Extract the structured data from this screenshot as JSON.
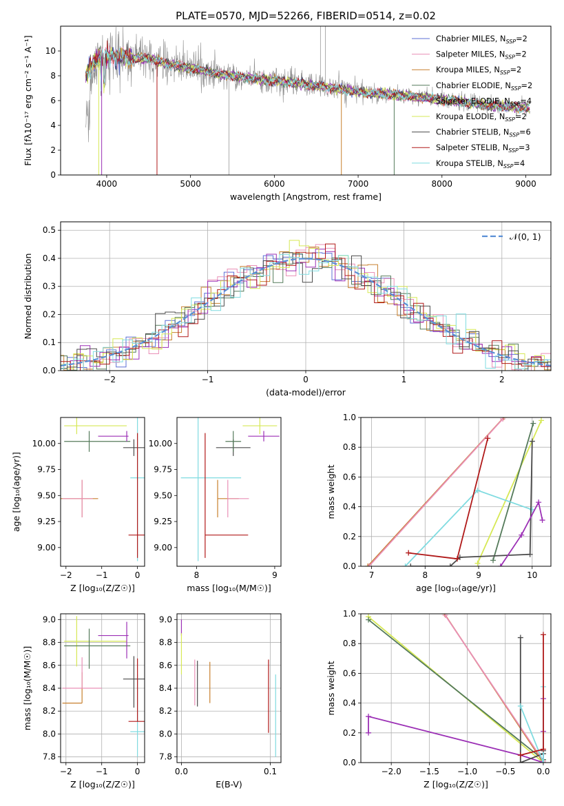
{
  "figure": {
    "title": "PLATE=0570, MJD=52266, FIBERID=0514, z=0.02"
  },
  "models": [
    {
      "label": "Chabrier MILES, N",
      "sub": "SSP",
      "n": "=2",
      "color": "#5b6fd6"
    },
    {
      "label": "Salpeter MILES, N",
      "sub": "SSP",
      "n": "=2",
      "color": "#e98fb6"
    },
    {
      "label": "Kroupa MILES, N",
      "sub": "SSP",
      "n": "=2",
      "color": "#c77f2c"
    },
    {
      "label": "Chabrier ELODIE, N",
      "sub": "SSP",
      "n": "=2",
      "color": "#547a5a"
    },
    {
      "label": "Salpeter ELODIE, N",
      "sub": "SSP",
      "n": "=4",
      "color": "#9b2fb5"
    },
    {
      "label": "Kroupa ELODIE, N",
      "sub": "SSP",
      "n": "=2",
      "color": "#d6e854"
    },
    {
      "label": "Chabrier STELIB, N",
      "sub": "SSP",
      "n": "=6",
      "color": "#4a4a4a"
    },
    {
      "label": "Salpeter STELIB, N",
      "sub": "SSP",
      "n": "=3",
      "color": "#b01818"
    },
    {
      "label": "Kroupa STELIB, N",
      "sub": "SSP",
      "n": "=4",
      "color": "#7fdbe0"
    }
  ],
  "chart_data": [
    {
      "id": "spectrum",
      "type": "line",
      "xlabel": "wavelength [Angstrom, rest frame]",
      "ylabel": "Flux [fλ10⁻¹⁷ erg cm⁻² s⁻¹ A⁻¹]",
      "xlim": [
        3450,
        9300
      ],
      "ylim": [
        0,
        12
      ],
      "xticks": [
        4000,
        5000,
        6000,
        7000,
        8000,
        9000
      ],
      "yticks": [
        0,
        2,
        4,
        6,
        8,
        10
      ],
      "legend": "top-right",
      "continuum": [
        [
          3750,
          8.0
        ],
        [
          3850,
          9.2
        ],
        [
          3950,
          9.6
        ],
        [
          4100,
          9.6
        ],
        [
          4300,
          9.4
        ],
        [
          4500,
          9.4
        ],
        [
          4700,
          9.0
        ],
        [
          5000,
          8.6
        ],
        [
          5300,
          8.2
        ],
        [
          5600,
          7.9
        ],
        [
          6000,
          7.6
        ],
        [
          6400,
          7.3
        ],
        [
          6700,
          7.0
        ],
        [
          7000,
          6.7
        ],
        [
          7400,
          6.5
        ],
        [
          7800,
          6.2
        ],
        [
          8200,
          5.9
        ],
        [
          8600,
          5.6
        ],
        [
          9050,
          5.4
        ]
      ],
      "data_series": {
        "name": "data",
        "color": "#8a8a8a"
      }
    },
    {
      "id": "residuals",
      "type": "histogram",
      "xlabel": "(data-model)/error",
      "ylabel": "Normed distribution",
      "xlim": [
        -2.5,
        2.5
      ],
      "ylim": [
        0,
        0.53
      ],
      "xticks": [
        -2,
        -1,
        0,
        1,
        2
      ],
      "yticks": [
        0.0,
        0.1,
        0.2,
        0.3,
        0.4,
        0.5
      ],
      "ytick_labels": [
        "0.0",
        "0.1",
        "0.2",
        "0.3",
        "0.4",
        "0.5"
      ],
      "bin_width": 0.1,
      "legend_label": "𝒩(0, 1)",
      "legend_color": "#5a8fd6"
    },
    {
      "id": "age_vs_Z",
      "type": "scatter",
      "xlabel": "Z [log₁₀(Z/Z☉)]",
      "ylabel": "age  [log₁₀(age/yr)]",
      "xlim": [
        -2.15,
        0.2
      ],
      "ylim": [
        8.82,
        10.25
      ],
      "xticks": [
        -2,
        -1,
        0
      ],
      "yticks": [
        9.0,
        9.25,
        9.5,
        9.75,
        10.0
      ],
      "ytick_labels": [
        "9.00",
        "9.25",
        "9.50",
        "9.75",
        "10.00"
      ],
      "points": [
        {
          "m": 2,
          "x": -1.55,
          "y": 9.47,
          "xe": [
            0.9,
            0.45
          ],
          "ye": [
            0.18,
            0.18
          ]
        },
        {
          "m": 1,
          "x": -1.55,
          "y": 9.47,
          "xe": [
            0.55,
            0.3
          ],
          "ye": [
            0.18,
            0.18
          ]
        },
        {
          "m": 5,
          "x": -1.7,
          "y": 10.17,
          "xe": [
            0.35,
            1.4
          ],
          "ye": [
            0.08,
            0.08
          ]
        },
        {
          "m": 3,
          "x": -1.35,
          "y": 10.02,
          "xe": [
            0.7,
            1.15
          ],
          "ye": [
            0.1,
            0.1
          ]
        },
        {
          "m": 4,
          "x": -0.3,
          "y": 10.07,
          "xe": [
            0.8,
            0.05
          ],
          "ye": [
            0.05,
            0.05
          ]
        },
        {
          "m": 6,
          "x": -0.1,
          "y": 9.96,
          "xe": [
            0.3,
            0.3
          ],
          "ye": [
            0.08,
            0.08
          ]
        },
        {
          "m": 8,
          "x": 0.0,
          "y": 9.67,
          "xe": [
            0.2,
            0.2
          ],
          "ye": [
            0.8,
            0.8
          ]
        },
        {
          "m": 7,
          "x": 0.0,
          "y": 9.12,
          "xe": [
            0.25,
            0.25
          ],
          "ye": [
            0.22,
            0.98
          ]
        }
      ]
    },
    {
      "id": "age_vs_mass",
      "type": "scatter",
      "xlabel": "mass [log₁₀(M/M☉)]",
      "ylabel": "",
      "xlim": [
        7.75,
        9.08
      ],
      "ylim": [
        8.82,
        10.25
      ],
      "xticks": [
        8,
        9
      ],
      "yticks": [
        9.0,
        9.25,
        9.5,
        9.75,
        10.0
      ],
      "ytick_labels": [
        "9.00",
        "9.25",
        "9.50",
        "9.75",
        "10.00"
      ],
      "points": [
        {
          "m": 8,
          "x": 8.02,
          "y": 9.67,
          "xe": [
            0.22,
            0.55
          ],
          "ye": [
            0.8,
            0.8
          ]
        },
        {
          "m": 7,
          "x": 8.11,
          "y": 9.12,
          "xe": [
            0.0,
            0.55
          ],
          "ye": [
            0.22,
            0.98
          ]
        },
        {
          "m": 2,
          "x": 8.27,
          "y": 9.47,
          "xe": [
            0.0,
            0.27
          ],
          "ye": [
            0.18,
            0.18
          ]
        },
        {
          "m": 1,
          "x": 8.4,
          "y": 9.47,
          "xe": [
            0.0,
            0.27
          ],
          "ye": [
            0.18,
            0.18
          ]
        },
        {
          "m": 6,
          "x": 8.47,
          "y": 9.96,
          "xe": [
            0.22,
            0.22
          ],
          "ye": [
            0.08,
            0.08
          ]
        },
        {
          "m": 3,
          "x": 8.47,
          "y": 10.02,
          "xe": [
            0.1,
            0.1
          ],
          "ye": [
            0.1,
            0.1
          ]
        },
        {
          "m": 5,
          "x": 8.81,
          "y": 10.17,
          "xe": [
            0.22,
            0.22
          ],
          "ye": [
            0.08,
            0.08
          ]
        },
        {
          "m": 4,
          "x": 8.86,
          "y": 10.07,
          "xe": [
            0.2,
            0.2
          ],
          "ye": [
            0.05,
            0.05
          ]
        }
      ]
    },
    {
      "id": "weight_vs_age",
      "type": "line",
      "xlabel": "age  [log₁₀(age/yr)]",
      "ylabel": "mass weight",
      "xlim": [
        6.8,
        10.35
      ],
      "ylim": [
        0,
        1
      ],
      "xticks": [
        7,
        8,
        9,
        10
      ],
      "yticks": [
        0.0,
        0.2,
        0.4,
        0.6,
        0.8,
        1.0
      ],
      "ytick_labels": [
        "0.0",
        "0.2",
        "0.4",
        "0.6",
        "0.8",
        "1.0"
      ],
      "series": [
        {
          "m": 2,
          "x": [
            6.93,
            9.47
          ],
          "y": [
            0.0,
            1.0
          ]
        },
        {
          "m": 1,
          "x": [
            6.95,
            9.45
          ],
          "y": [
            0.0,
            0.99
          ]
        },
        {
          "m": 5,
          "x": [
            8.98,
            10.17
          ],
          "y": [
            0.02,
            0.98
          ]
        },
        {
          "m": 3,
          "x": [
            9.27,
            10.02
          ],
          "y": [
            0.04,
            0.96
          ]
        },
        {
          "m": 8,
          "x": [
            7.63,
            8.98,
            10.0
          ],
          "y": [
            0.0,
            0.51,
            0.38
          ]
        },
        {
          "m": 6,
          "x": [
            7.73,
            8.47,
            8.65,
            9.96,
            10.0
          ],
          "y": [
            0.0,
            0.0,
            0.06,
            0.08,
            0.84
          ]
        },
        {
          "m": 7,
          "x": [
            7.69,
            8.6,
            9.17
          ],
          "y": [
            0.09,
            0.05,
            0.86
          ]
        },
        {
          "m": 4,
          "x": [
            9.41,
            9.8,
            10.12,
            10.19
          ],
          "y": [
            0.0,
            0.21,
            0.43,
            0.31
          ]
        }
      ]
    },
    {
      "id": "mass_vs_Z",
      "type": "scatter",
      "xlabel": "Z [log₁₀(Z/Z☉)]",
      "ylabel": "mass [log₁₀(M/M☉)]",
      "xlim": [
        -2.15,
        0.2
      ],
      "ylim": [
        7.75,
        9.05
      ],
      "xticks": [
        -2,
        -1,
        0
      ],
      "yticks": [
        7.8,
        8.0,
        8.2,
        8.4,
        8.6,
        8.8,
        9.0
      ],
      "ytick_labels": [
        "7.8",
        "8.0",
        "8.2",
        "8.4",
        "8.6",
        "8.8",
        "9.0"
      ],
      "points": [
        {
          "m": 2,
          "x": -1.55,
          "y": 8.27,
          "xe": [
            0.55,
            0.0
          ],
          "ye": [
            0.0,
            0.27
          ]
        },
        {
          "m": 1,
          "x": -1.55,
          "y": 8.4,
          "xe": [
            0.55,
            0.55
          ],
          "ye": [
            0.0,
            0.27
          ]
        },
        {
          "m": 5,
          "x": -1.7,
          "y": 8.81,
          "xe": [
            0.35,
            1.4
          ],
          "ye": [
            0.22,
            0.22
          ]
        },
        {
          "m": 3,
          "x": -1.35,
          "y": 8.77,
          "xe": [
            0.7,
            1.15
          ],
          "ye": [
            0.2,
            0.15
          ]
        },
        {
          "m": 4,
          "x": -0.3,
          "y": 8.86,
          "xe": [
            0.8,
            0.05
          ],
          "ye": [
            0.2,
            0.12
          ]
        },
        {
          "m": 6,
          "x": -0.1,
          "y": 8.48,
          "xe": [
            0.3,
            0.3
          ],
          "ye": [
            0.25,
            0.2
          ]
        },
        {
          "m": 8,
          "x": 0.0,
          "y": 8.02,
          "xe": [
            0.2,
            0.2
          ],
          "ye": [
            0.22,
            0.5
          ]
        },
        {
          "m": 7,
          "x": 0.0,
          "y": 8.11,
          "xe": [
            0.25,
            0.25
          ],
          "ye": [
            0.0,
            0.55
          ]
        }
      ]
    },
    {
      "id": "mass_vs_ebv",
      "type": "scatter",
      "xlabel": "E(B-V)",
      "ylabel": "",
      "xlim": [
        -0.005,
        0.112
      ],
      "ylim": [
        7.75,
        9.05
      ],
      "xticks": [
        0.0,
        0.1
      ],
      "yticks": [
        7.8,
        8.0,
        8.2,
        8.4,
        8.6,
        8.8,
        9.0
      ],
      "xtick_labels": [
        "0.0",
        "0.1"
      ],
      "ytick_labels": [
        "7.8",
        "8.0",
        "8.2",
        "8.4",
        "8.6",
        "8.8",
        "9.0"
      ],
      "points": [
        {
          "m": 4,
          "x": 0.0,
          "y": 8.93,
          "xe": [
            0,
            0
          ],
          "ye": [
            0.07,
            0.07
          ]
        },
        {
          "m": 5,
          "x": 0.0,
          "y": 8.7,
          "xe": [
            0,
            0
          ],
          "ye": [
            0.18,
            0.18
          ]
        },
        {
          "m": 1,
          "x": 0.015,
          "y": 8.45,
          "xe": [
            0,
            0
          ],
          "ye": [
            0.2,
            0.2
          ]
        },
        {
          "m": 6,
          "x": 0.018,
          "y": 8.44,
          "xe": [
            0,
            0
          ],
          "ye": [
            0.2,
            0.2
          ]
        },
        {
          "m": 2,
          "x": 0.032,
          "y": 8.45,
          "xe": [
            0,
            0
          ],
          "ye": [
            0.18,
            0.18
          ]
        },
        {
          "m": 7,
          "x": 0.098,
          "y": 8.33,
          "xe": [
            0,
            0
          ],
          "ye": [
            0.32,
            0.32
          ]
        },
        {
          "m": 8,
          "x": 0.106,
          "y": 8.16,
          "xe": [
            0,
            0
          ],
          "ye": [
            0.36,
            0.36
          ]
        }
      ]
    },
    {
      "id": "weight_vs_Z",
      "type": "line",
      "xlabel": "Z [log₁₀(Z/Z☉)]",
      "ylabel": "mass weight",
      "xlim": [
        -2.4,
        0.1
      ],
      "ylim": [
        0,
        1
      ],
      "xticks": [
        -2.0,
        -1.5,
        -1.0,
        -0.5,
        0.0
      ],
      "yticks": [
        0.0,
        0.2,
        0.4,
        0.6,
        0.8,
        1.0
      ],
      "xtick_labels": [
        "−2.0",
        "−1.5",
        "−1.0",
        "−0.5",
        "0.0"
      ],
      "ytick_labels": [
        "0.0",
        "0.2",
        "0.4",
        "0.6",
        "0.8",
        "1.0"
      ],
      "series": [
        {
          "m": 5,
          "x": [
            -2.3,
            0.0
          ],
          "y": [
            0.98,
            0.0
          ]
        },
        {
          "m": 3,
          "x": [
            -2.3,
            0.0
          ],
          "y": [
            0.96,
            0.02
          ]
        },
        {
          "m": 2,
          "x": [
            -1.3,
            0.0
          ],
          "y": [
            1.0,
            0.0
          ]
        },
        {
          "m": 1,
          "x": [
            -1.29,
            0.0
          ],
          "y": [
            0.99,
            0.01
          ]
        },
        {
          "m": 4,
          "x": [
            -2.3,
            -2.3,
            -0.3,
            0.0,
            0.0,
            0.0
          ],
          "y": [
            0.2,
            0.31,
            0.05,
            0.0,
            0.43,
            0.21
          ]
        },
        {
          "m": 6,
          "x": [
            -0.3,
            -0.3,
            0.0,
            0.0
          ],
          "y": [
            0.84,
            0.0,
            0.06,
            0.08
          ]
        },
        {
          "m": 8,
          "x": [
            -0.3,
            0.0,
            0.0
          ],
          "y": [
            0.38,
            0.0,
            0.51
          ]
        },
        {
          "m": 7,
          "x": [
            -0.3,
            0.0,
            0.0
          ],
          "y": [
            0.05,
            0.09,
            0.86
          ]
        }
      ]
    }
  ]
}
